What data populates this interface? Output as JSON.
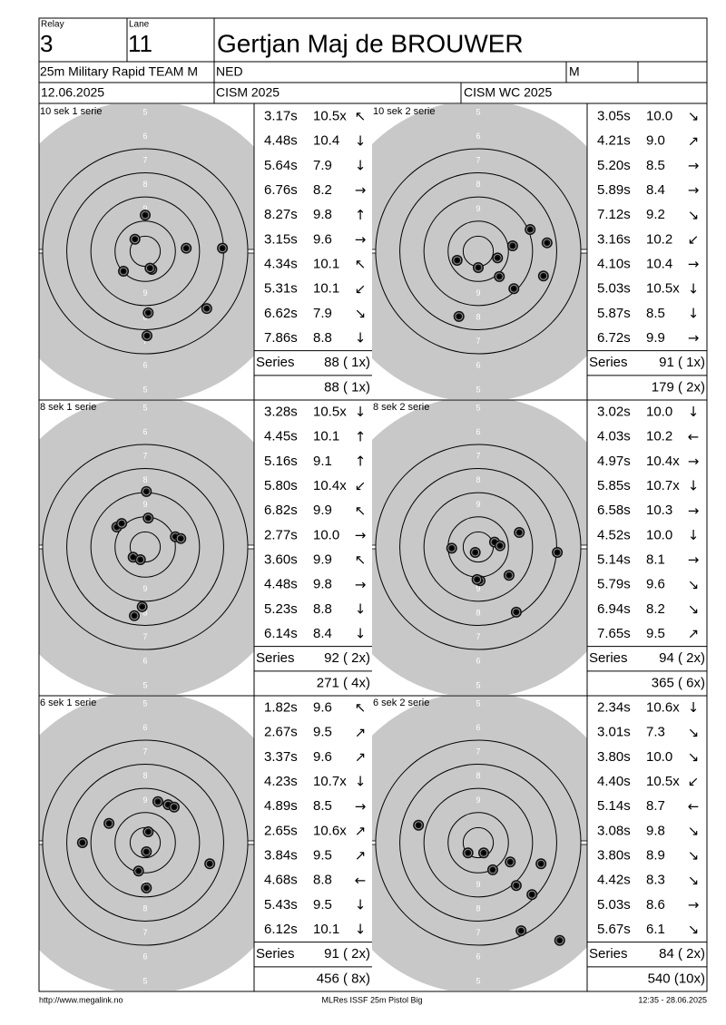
{
  "header": {
    "relay_label": "Relay",
    "relay": "3",
    "lane_label": "Lane",
    "lane": "11",
    "name": "Gertjan Maj de BROUWER",
    "event": "25m Military Rapid TEAM M",
    "nation": "NED",
    "gender": "M",
    "date": "12.06.2025",
    "competition": "CISM 2025",
    "match": "CISM WC 2025"
  },
  "target": {
    "rings": [
      5,
      6,
      7,
      8,
      9
    ]
  },
  "panels": [
    {
      "title": "10 sek 1 serie",
      "shots": [
        {
          "time": "3.17s",
          "score": "10.5x",
          "dir": "↖"
        },
        {
          "time": "4.48s",
          "score": "10.4",
          "dir": "↓"
        },
        {
          "time": "5.64s",
          "score": "7.9",
          "dir": "↓"
        },
        {
          "time": "6.76s",
          "score": "8.2",
          "dir": "→"
        },
        {
          "time": "8.27s",
          "score": "9.8",
          "dir": "↑"
        },
        {
          "time": "3.15s",
          "score": "9.6",
          "dir": "→"
        },
        {
          "time": "4.34s",
          "score": "10.1",
          "dir": "↖"
        },
        {
          "time": "5.31s",
          "score": "10.1",
          "dir": "↙"
        },
        {
          "time": "6.62s",
          "score": "7.9",
          "dir": "↘"
        },
        {
          "time": "7.86s",
          "score": "8.8",
          "dir": "↓"
        }
      ],
      "hits": [
        [
          0,
          60
        ],
        [
          -17,
          20
        ],
        [
          68,
          5
        ],
        [
          128,
          5
        ],
        [
          -36,
          -33
        ],
        [
          11,
          -30
        ],
        [
          102,
          -95
        ],
        [
          5,
          -102
        ],
        [
          3,
          -140
        ],
        [
          8,
          -28
        ]
      ],
      "series_label": "Series",
      "series": "88 ( 1x)",
      "total": "88 ( 1x)"
    },
    {
      "title": "10 sek 2 serie",
      "shots": [
        {
          "time": "3.05s",
          "score": "10.0",
          "dir": "↘"
        },
        {
          "time": "4.21s",
          "score": "9.0",
          "dir": "↗"
        },
        {
          "time": "5.20s",
          "score": "8.5",
          "dir": "→"
        },
        {
          "time": "5.89s",
          "score": "8.4",
          "dir": "→"
        },
        {
          "time": "7.12s",
          "score": "9.2",
          "dir": "↘"
        },
        {
          "time": "3.16s",
          "score": "10.2",
          "dir": "↙"
        },
        {
          "time": "4.10s",
          "score": "10.4",
          "dir": "→"
        },
        {
          "time": "5.03s",
          "score": "10.5x",
          "dir": "↓"
        },
        {
          "time": "5.87s",
          "score": "8.5",
          "dir": "↓"
        },
        {
          "time": "6.72s",
          "score": "9.9",
          "dir": "→"
        }
      ],
      "hits": [
        [
          86,
          36
        ],
        [
          114,
          14
        ],
        [
          57,
          9
        ],
        [
          32,
          -11
        ],
        [
          -35,
          -15
        ],
        [
          0,
          -27
        ],
        [
          35,
          -42
        ],
        [
          108,
          -41
        ],
        [
          59,
          -62
        ],
        [
          -32,
          -108
        ]
      ],
      "series_label": "Series",
      "series": "91 ( 1x)",
      "total": "179 ( 2x)"
    },
    {
      "title": "8 sek 1 serie",
      "shots": [
        {
          "time": "3.28s",
          "score": "10.5x",
          "dir": "↓"
        },
        {
          "time": "4.45s",
          "score": "10.1",
          "dir": "↑"
        },
        {
          "time": "5.16s",
          "score": "9.1",
          "dir": "↑"
        },
        {
          "time": "5.80s",
          "score": "10.4x",
          "dir": "↙"
        },
        {
          "time": "6.82s",
          "score": "9.9",
          "dir": "↖"
        },
        {
          "time": "2.77s",
          "score": "10.0",
          "dir": "→"
        },
        {
          "time": "3.60s",
          "score": "9.9",
          "dir": "↖"
        },
        {
          "time": "4.48s",
          "score": "9.8",
          "dir": "→"
        },
        {
          "time": "5.23s",
          "score": "8.8",
          "dir": "↓"
        },
        {
          "time": "6.14s",
          "score": "8.4",
          "dir": "↓"
        }
      ],
      "hits": [
        [
          2,
          92
        ],
        [
          5,
          48
        ],
        [
          -47,
          33
        ],
        [
          -39,
          39
        ],
        [
          50,
          17
        ],
        [
          59,
          14
        ],
        [
          -20,
          -17
        ],
        [
          -8,
          -21
        ],
        [
          -5,
          -99
        ],
        [
          -18,
          -114
        ]
      ],
      "series_label": "Series",
      "series": "92 ( 2x)",
      "total": "271 ( 4x)"
    },
    {
      "title": "8 sek 2 serie",
      "shots": [
        {
          "time": "3.02s",
          "score": "10.0",
          "dir": "↓"
        },
        {
          "time": "4.03s",
          "score": "10.2",
          "dir": "←"
        },
        {
          "time": "4.97s",
          "score": "10.4x",
          "dir": "→"
        },
        {
          "time": "5.85s",
          "score": "10.7x",
          "dir": "↓"
        },
        {
          "time": "6.58s",
          "score": "10.3",
          "dir": "→"
        },
        {
          "time": "4.52s",
          "score": "10.0",
          "dir": "↓"
        },
        {
          "time": "5.14s",
          "score": "8.1",
          "dir": "→"
        },
        {
          "time": "5.79s",
          "score": "9.6",
          "dir": "↘"
        },
        {
          "time": "6.94s",
          "score": "8.2",
          "dir": "↘"
        },
        {
          "time": "7.65s",
          "score": "9.5",
          "dir": "↗"
        }
      ],
      "hits": [
        [
          68,
          24
        ],
        [
          27,
          8
        ],
        [
          36,
          2
        ],
        [
          -5,
          -9
        ],
        [
          -44,
          -2
        ],
        [
          131,
          -9
        ],
        [
          51,
          -47
        ],
        [
          3,
          -56
        ],
        [
          -2,
          -54
        ],
        [
          63,
          -108
        ]
      ],
      "series_label": "Series",
      "series": "94 ( 2x)",
      "total": "365 ( 6x)"
    },
    {
      "title": "6 sek 1 serie",
      "shots": [
        {
          "time": "1.82s",
          "score": "9.6",
          "dir": "↖"
        },
        {
          "time": "2.67s",
          "score": "9.5",
          "dir": "↗"
        },
        {
          "time": "3.37s",
          "score": "9.6",
          "dir": "↗"
        },
        {
          "time": "4.23s",
          "score": "10.7x",
          "dir": "↓"
        },
        {
          "time": "4.89s",
          "score": "8.5",
          "dir": "→"
        },
        {
          "time": "2.65s",
          "score": "10.6x",
          "dir": "↗"
        },
        {
          "time": "3.84s",
          "score": "9.5",
          "dir": "↗"
        },
        {
          "time": "4.68s",
          "score": "8.8",
          "dir": "←"
        },
        {
          "time": "5.43s",
          "score": "9.5",
          "dir": "↓"
        },
        {
          "time": "6.12s",
          "score": "10.1",
          "dir": "↓"
        }
      ],
      "hits": [
        [
          21,
          68
        ],
        [
          38,
          63
        ],
        [
          48,
          59
        ],
        [
          -60,
          32
        ],
        [
          -104,
          0
        ],
        [
          5,
          18
        ],
        [
          2,
          -15
        ],
        [
          -11,
          -47
        ],
        [
          107,
          -35
        ],
        [
          2,
          -75
        ]
      ],
      "series_label": "Series",
      "series": "91 ( 2x)",
      "total": "456 ( 8x)"
    },
    {
      "title": "6 sek 2 serie",
      "shots": [
        {
          "time": "2.34s",
          "score": "10.6x",
          "dir": "↓"
        },
        {
          "time": "3.01s",
          "score": "7.3",
          "dir": "↘"
        },
        {
          "time": "3.80s",
          "score": "10.0",
          "dir": "↘"
        },
        {
          "time": "4.40s",
          "score": "10.5x",
          "dir": "↙"
        },
        {
          "time": "5.14s",
          "score": "8.7",
          "dir": "←"
        },
        {
          "time": "3.08s",
          "score": "9.8",
          "dir": "↘"
        },
        {
          "time": "3.80s",
          "score": "8.9",
          "dir": "↘"
        },
        {
          "time": "4.42s",
          "score": "8.3",
          "dir": "↘"
        },
        {
          "time": "5.03s",
          "score": "8.6",
          "dir": "→"
        },
        {
          "time": "5.67s",
          "score": "6.1",
          "dir": "↘"
        }
      ],
      "hits": [
        [
          -99,
          29
        ],
        [
          -17,
          -17
        ],
        [
          9,
          -17
        ],
        [
          53,
          -32
        ],
        [
          104,
          -35
        ],
        [
          24,
          -45
        ],
        [
          63,
          -71
        ],
        [
          89,
          -86
        ],
        [
          71,
          -146
        ],
        [
          135,
          -162
        ]
      ],
      "series_label": "Series",
      "series": "84 ( 2x)",
      "total": "540 (10x)"
    }
  ],
  "footer": {
    "left": "http://www.megalink.no",
    "center": "MLRes ISSF 25m Pistol Big",
    "right": "12:35 - 28.06.2025"
  }
}
